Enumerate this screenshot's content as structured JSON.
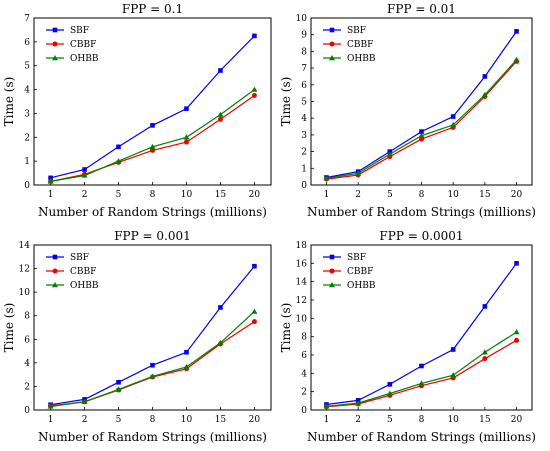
{
  "chart_data": [
    {
      "type": "line",
      "title": "FPP = 0.1",
      "xlabel": "Number of Random Strings (millions)",
      "ylabel": "Time (s)",
      "categories": [
        "1",
        "2",
        "5",
        "8",
        "10",
        "15",
        "20"
      ],
      "ylim": [
        0,
        7
      ],
      "yticks": [
        "0",
        "1",
        "2",
        "3",
        "4",
        "5",
        "6",
        "7"
      ],
      "grid": false,
      "legend": "top-left",
      "series": [
        {
          "name": "SBF",
          "color": "#0000ee",
          "marker": "square",
          "values": [
            0.3,
            0.65,
            1.6,
            2.5,
            3.2,
            4.8,
            6.25
          ]
        },
        {
          "name": "CBBF",
          "color": "#ee0000",
          "marker": "circle",
          "values": [
            0.15,
            0.45,
            0.95,
            1.45,
            1.8,
            2.75,
            3.75
          ]
        },
        {
          "name": "OHBB",
          "color": "#008000",
          "marker": "triangle",
          "values": [
            0.15,
            0.4,
            1.0,
            1.6,
            2.0,
            2.95,
            4.0
          ]
        }
      ]
    },
    {
      "type": "line",
      "title": "FPP = 0.01",
      "xlabel": "Number of Random Strings (millions)",
      "ylabel": "Time (s)",
      "categories": [
        "1",
        "2",
        "5",
        "8",
        "10",
        "15",
        "20"
      ],
      "ylim": [
        0,
        10
      ],
      "yticks": [
        "0",
        "1",
        "2",
        "3",
        "4",
        "5",
        "6",
        "7",
        "8",
        "9",
        "10"
      ],
      "grid": false,
      "legend": "top-left",
      "series": [
        {
          "name": "SBF",
          "color": "#0000ee",
          "marker": "square",
          "values": [
            0.45,
            0.8,
            2.0,
            3.2,
            4.1,
            6.5,
            9.2
          ]
        },
        {
          "name": "CBBF",
          "color": "#ee0000",
          "marker": "circle",
          "values": [
            0.35,
            0.6,
            1.7,
            2.75,
            3.45,
            5.3,
            7.4
          ]
        },
        {
          "name": "OHBB",
          "color": "#008000",
          "marker": "triangle",
          "values": [
            0.4,
            0.7,
            1.85,
            2.95,
            3.6,
            5.4,
            7.5
          ]
        }
      ]
    },
    {
      "type": "line",
      "title": "FPP = 0.001",
      "xlabel": "Number of Random Strings (millions)",
      "ylabel": "Time (s)",
      "categories": [
        "1",
        "2",
        "5",
        "8",
        "10",
        "15",
        "20"
      ],
      "ylim": [
        0,
        14
      ],
      "yticks": [
        "0",
        "2",
        "4",
        "6",
        "8",
        "10",
        "12",
        "14"
      ],
      "grid": false,
      "legend": "top-left",
      "series": [
        {
          "name": "SBF",
          "color": "#0000ee",
          "marker": "square",
          "values": [
            0.45,
            0.9,
            2.35,
            3.8,
            4.9,
            8.7,
            12.2
          ]
        },
        {
          "name": "CBBF",
          "color": "#ee0000",
          "marker": "circle",
          "values": [
            0.35,
            0.7,
            1.7,
            2.8,
            3.5,
            5.6,
            7.5
          ]
        },
        {
          "name": "OHBB",
          "color": "#008000",
          "marker": "triangle",
          "values": [
            0.3,
            0.7,
            1.75,
            2.85,
            3.65,
            5.7,
            8.35
          ]
        }
      ]
    },
    {
      "type": "line",
      "title": "FPP = 0.0001",
      "xlabel": "Number of Random Strings (millions)",
      "ylabel": "Time (s)",
      "categories": [
        "1",
        "2",
        "5",
        "8",
        "10",
        "15",
        "20"
      ],
      "ylim": [
        0,
        18
      ],
      "yticks": [
        "0",
        "2",
        "4",
        "6",
        "8",
        "10",
        "12",
        "14",
        "16",
        "18"
      ],
      "grid": false,
      "legend": "top-left",
      "series": [
        {
          "name": "SBF",
          "color": "#0000ee",
          "marker": "square",
          "values": [
            0.6,
            1.05,
            2.8,
            4.8,
            6.6,
            11.3,
            16.0
          ]
        },
        {
          "name": "CBBF",
          "color": "#ee0000",
          "marker": "circle",
          "values": [
            0.35,
            0.65,
            1.6,
            2.65,
            3.5,
            5.6,
            7.6
          ]
        },
        {
          "name": "OHBB",
          "color": "#008000",
          "marker": "triangle",
          "values": [
            0.4,
            0.75,
            1.8,
            2.9,
            3.8,
            6.3,
            8.5
          ]
        }
      ]
    }
  ]
}
